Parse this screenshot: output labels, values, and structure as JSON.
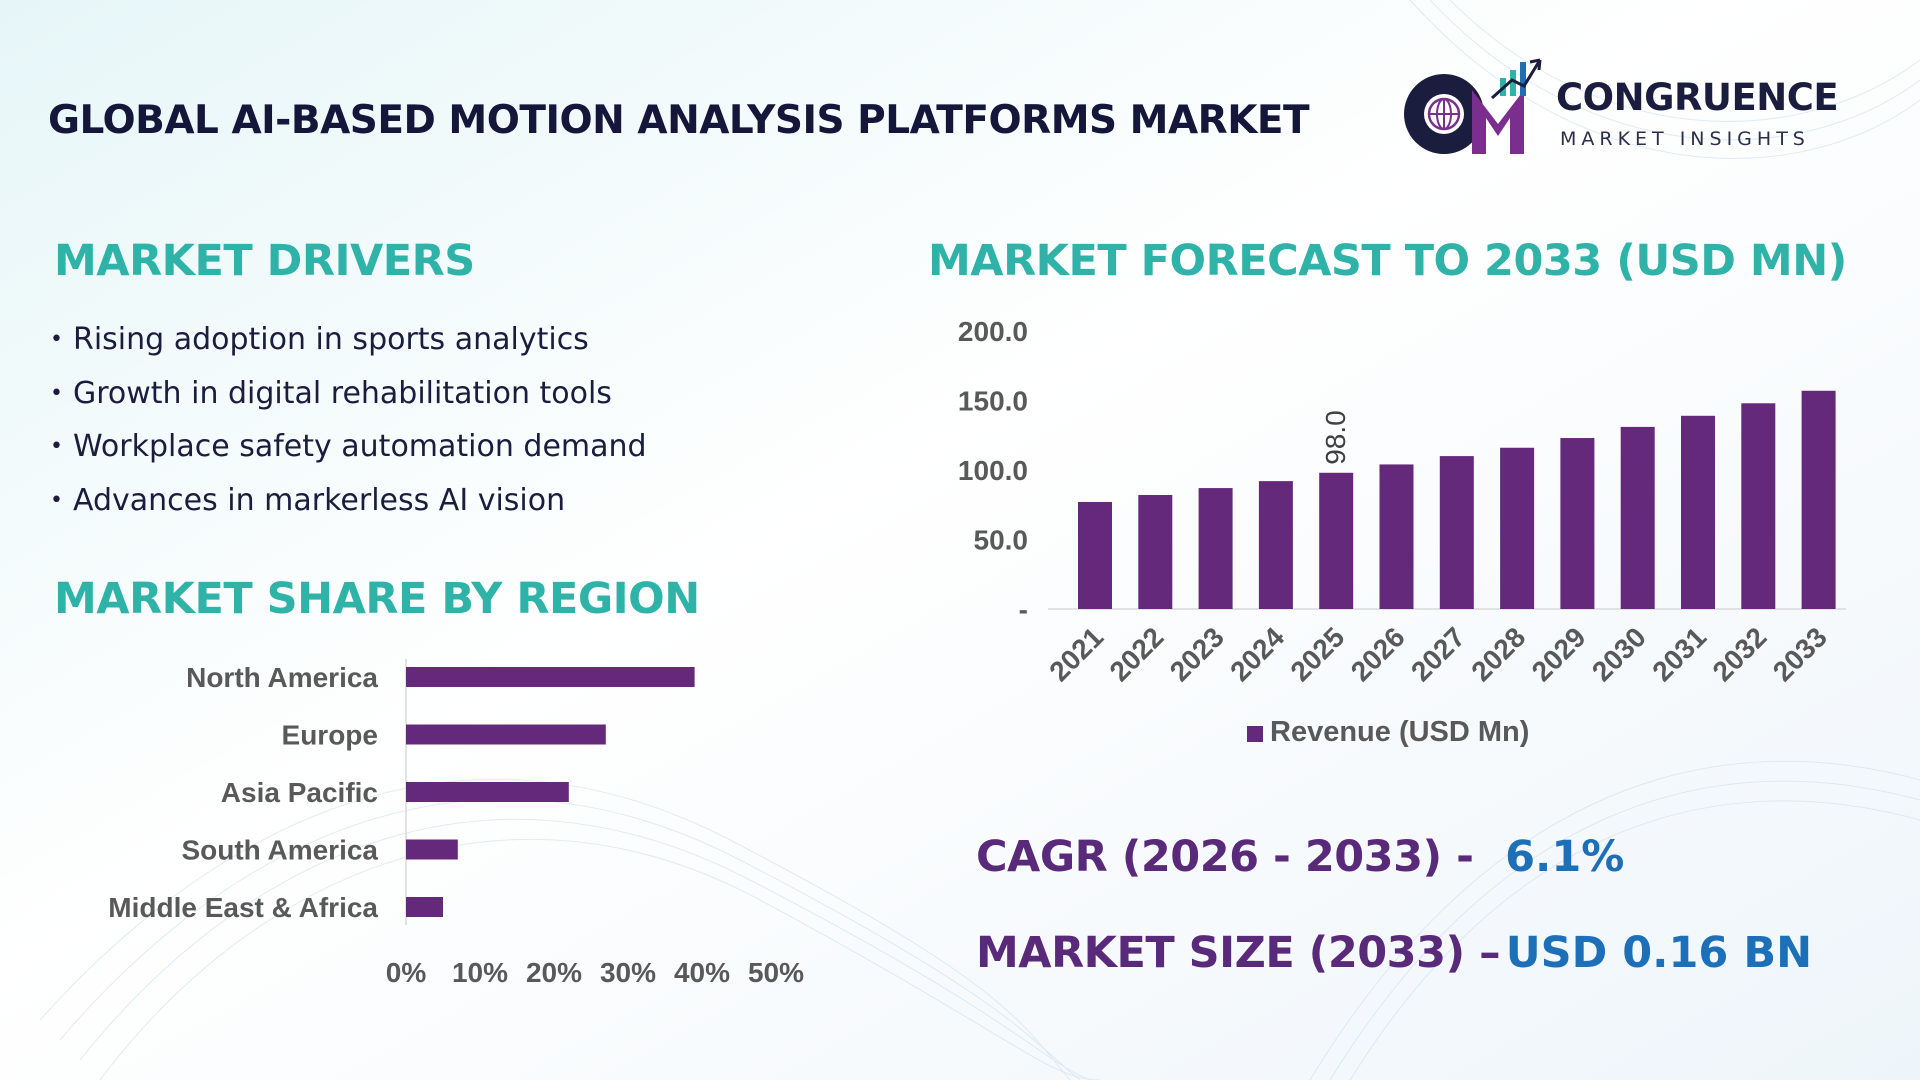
{
  "title": "GLOBAL AI-BASED MOTION ANALYSIS PLATFORMS MARKET",
  "logo": {
    "name": "CONGRUENCE",
    "tagline": "MARKET INSIGHTS"
  },
  "drivers": {
    "heading": "MARKET DRIVERS",
    "bullet": "•",
    "items": [
      "Rising adoption in sports analytics",
      "Growth in digital rehabilitation tools",
      "Workplace safety automation demand",
      "Advances in markerless AI vision"
    ]
  },
  "region": {
    "heading": "MARKET SHARE BY REGION"
  },
  "forecast": {
    "heading": "MARKET FORECAST TO 2033 (USD MN)"
  },
  "kpis": {
    "cagr_label": "CAGR (2026 - 2033) -",
    "cagr_value": "6.1%",
    "size_label": "MARKET SIZE (2033) –",
    "size_value": "USD 0.16 BN"
  },
  "colors": {
    "bar": "#65297b",
    "heading": "#2fb3a8",
    "kpi_label": "#5a2a7a",
    "kpi_value": "#1d6fb8",
    "title": "#14163a"
  },
  "chart_data": [
    {
      "type": "bar",
      "orientation": "horizontal",
      "categories": [
        "North America",
        "Europe",
        "Asia Pacific",
        "South America",
        "Middle East & Africa"
      ],
      "values": [
        39,
        27,
        22,
        7,
        5
      ],
      "unit": "%",
      "xlim": [
        0,
        50
      ],
      "xticks": [
        "0%",
        "10%",
        "20%",
        "30%",
        "40%",
        "50%"
      ],
      "grid": false,
      "legend": "none"
    },
    {
      "type": "bar",
      "orientation": "vertical",
      "categories": [
        "2021",
        "2022",
        "2023",
        "2024",
        "2025",
        "2026",
        "2027",
        "2028",
        "2029",
        "2030",
        "2031",
        "2032",
        "2033"
      ],
      "series": [
        {
          "name": "Revenue (USD Mn)",
          "values": [
            77,
            82,
            87,
            92,
            98,
            104,
            110,
            116,
            123,
            131,
            139,
            148,
            157
          ]
        }
      ],
      "data_labels": [
        {
          "category": "2025",
          "text": "98.0"
        }
      ],
      "ylim": [
        0,
        200
      ],
      "yticks": [
        "-",
        "50.0",
        "100.0",
        "150.0",
        "200.0"
      ],
      "grid": false,
      "legend": "bottom"
    }
  ]
}
